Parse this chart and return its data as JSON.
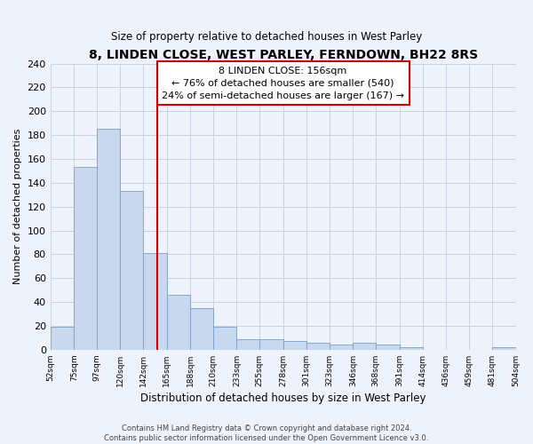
{
  "title": "8, LINDEN CLOSE, WEST PARLEY, FERNDOWN, BH22 8RS",
  "subtitle": "Size of property relative to detached houses in West Parley",
  "xlabel": "Distribution of detached houses by size in West Parley",
  "ylabel": "Number of detached properties",
  "bin_labels": [
    "52sqm",
    "75sqm",
    "97sqm",
    "120sqm",
    "142sqm",
    "165sqm",
    "188sqm",
    "210sqm",
    "233sqm",
    "255sqm",
    "278sqm",
    "301sqm",
    "323sqm",
    "346sqm",
    "368sqm",
    "391sqm",
    "414sqm",
    "436sqm",
    "459sqm",
    "481sqm",
    "504sqm"
  ],
  "bin_edges": [
    52,
    75,
    97,
    120,
    142,
    165,
    188,
    210,
    233,
    255,
    278,
    301,
    323,
    346,
    368,
    391,
    414,
    436,
    459,
    481,
    504
  ],
  "bar_heights": [
    19,
    153,
    185,
    133,
    81,
    46,
    35,
    19,
    9,
    9,
    7,
    6,
    4,
    6,
    4,
    2,
    0,
    0,
    0,
    2
  ],
  "bar_color": "#c8d8ee",
  "bar_edgecolor": "#7a9ec8",
  "vline_x": 156,
  "vline_color": "#cc0000",
  "ylim": [
    0,
    240
  ],
  "yticks": [
    0,
    20,
    40,
    60,
    80,
    100,
    120,
    140,
    160,
    180,
    200,
    220,
    240
  ],
  "annotation_text": "8 LINDEN CLOSE: 156sqm\n← 76% of detached houses are smaller (540)\n24% of semi-detached houses are larger (167) →",
  "annotation_box_edgecolor": "#cc0000",
  "footer_text": "Contains HM Land Registry data © Crown copyright and database right 2024.\nContains public sector information licensed under the Open Government Licence v3.0.",
  "bg_color": "#eef2fb",
  "plot_bg_color": "#eef2fb",
  "grid_color": "#c8cfe0"
}
